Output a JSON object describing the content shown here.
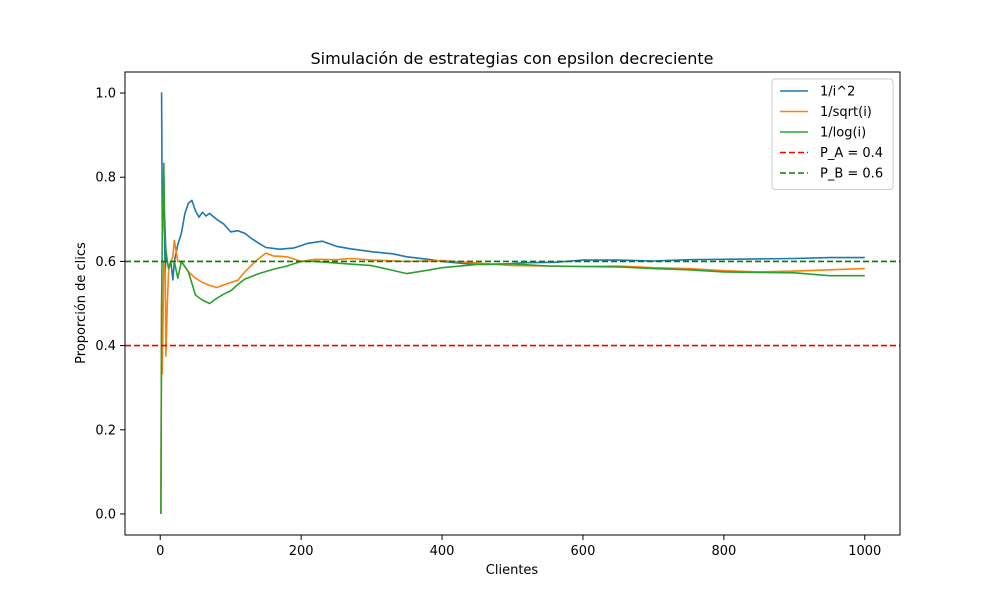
{
  "chart_data": {
    "type": "line",
    "title": "Simulación de estrategias con epsilon decreciente",
    "xlabel": "Clientes",
    "ylabel": "Proporción de clics",
    "xlim": [
      -50,
      1050
    ],
    "ylim": [
      -0.05,
      1.05
    ],
    "xticks": [
      0,
      200,
      400,
      600,
      800,
      1000
    ],
    "yticks": [
      0.0,
      0.2,
      0.4,
      0.6,
      0.8,
      1.0
    ],
    "xtick_labels": [
      "0",
      "200",
      "400",
      "600",
      "800",
      "1000"
    ],
    "ytick_labels": [
      "0.0",
      "0.2",
      "0.4",
      "0.6",
      "0.8",
      "1.0"
    ],
    "grid": false,
    "legend_position": "top-right",
    "series": [
      {
        "name": "1/i^2",
        "color": "#1f77b4",
        "style": "solid",
        "points": [
          [
            1,
            1.0
          ],
          [
            2,
            1.0
          ],
          [
            3,
            0.667
          ],
          [
            4,
            0.75
          ],
          [
            5,
            0.8
          ],
          [
            6,
            0.667
          ],
          [
            7,
            0.571
          ],
          [
            8,
            0.625
          ],
          [
            10,
            0.6
          ],
          [
            12,
            0.583
          ],
          [
            15,
            0.6
          ],
          [
            18,
            0.556
          ],
          [
            20,
            0.6
          ],
          [
            25,
            0.64
          ],
          [
            30,
            0.667
          ],
          [
            35,
            0.714
          ],
          [
            40,
            0.738
          ],
          [
            45,
            0.745
          ],
          [
            50,
            0.72
          ],
          [
            55,
            0.705
          ],
          [
            60,
            0.717
          ],
          [
            65,
            0.708
          ],
          [
            70,
            0.714
          ],
          [
            80,
            0.7
          ],
          [
            90,
            0.689
          ],
          [
            100,
            0.67
          ],
          [
            110,
            0.673
          ],
          [
            120,
            0.667
          ],
          [
            130,
            0.654
          ],
          [
            140,
            0.643
          ],
          [
            150,
            0.633
          ],
          [
            170,
            0.629
          ],
          [
            190,
            0.632
          ],
          [
            210,
            0.643
          ],
          [
            230,
            0.648
          ],
          [
            250,
            0.636
          ],
          [
            270,
            0.63
          ],
          [
            300,
            0.623
          ],
          [
            330,
            0.618
          ],
          [
            350,
            0.611
          ],
          [
            380,
            0.605
          ],
          [
            400,
            0.6
          ],
          [
            430,
            0.595
          ],
          [
            460,
            0.593
          ],
          [
            490,
            0.594
          ],
          [
            520,
            0.597
          ],
          [
            560,
            0.598
          ],
          [
            600,
            0.603
          ],
          [
            650,
            0.603
          ],
          [
            700,
            0.601
          ],
          [
            750,
            0.604
          ],
          [
            800,
            0.605
          ],
          [
            850,
            0.606
          ],
          [
            900,
            0.607
          ],
          [
            950,
            0.609
          ],
          [
            1000,
            0.609
          ]
        ]
      },
      {
        "name": "1/sqrt(i)",
        "color": "#ff7f0e",
        "style": "solid",
        "points": [
          [
            1,
            0.0
          ],
          [
            2,
            0.5
          ],
          [
            3,
            0.333
          ],
          [
            5,
            0.6
          ],
          [
            7,
            0.571
          ],
          [
            8,
            0.375
          ],
          [
            10,
            0.5
          ],
          [
            12,
            0.583
          ],
          [
            15,
            0.6
          ],
          [
            18,
            0.611
          ],
          [
            20,
            0.65
          ],
          [
            25,
            0.6
          ],
          [
            30,
            0.6
          ],
          [
            40,
            0.575
          ],
          [
            50,
            0.56
          ],
          [
            60,
            0.55
          ],
          [
            70,
            0.543
          ],
          [
            80,
            0.538
          ],
          [
            90,
            0.544
          ],
          [
            100,
            0.55
          ],
          [
            110,
            0.555
          ],
          [
            120,
            0.575
          ],
          [
            130,
            0.592
          ],
          [
            140,
            0.607
          ],
          [
            150,
            0.62
          ],
          [
            160,
            0.613
          ],
          [
            180,
            0.611
          ],
          [
            200,
            0.6
          ],
          [
            220,
            0.605
          ],
          [
            250,
            0.604
          ],
          [
            270,
            0.607
          ],
          [
            300,
            0.603
          ],
          [
            350,
            0.6
          ],
          [
            400,
            0.602
          ],
          [
            450,
            0.596
          ],
          [
            500,
            0.59
          ],
          [
            550,
            0.589
          ],
          [
            600,
            0.588
          ],
          [
            650,
            0.589
          ],
          [
            700,
            0.585
          ],
          [
            750,
            0.583
          ],
          [
            800,
            0.578
          ],
          [
            850,
            0.575
          ],
          [
            900,
            0.577
          ],
          [
            950,
            0.58
          ],
          [
            1000,
            0.583
          ]
        ]
      },
      {
        "name": "1/log(i)",
        "color": "#2ca02c",
        "style": "solid",
        "points": [
          [
            1,
            0.0
          ],
          [
            2,
            0.5
          ],
          [
            3,
            0.667
          ],
          [
            4,
            0.75
          ],
          [
            5,
            0.833
          ],
          [
            6,
            0.714
          ],
          [
            8,
            0.625
          ],
          [
            10,
            0.6
          ],
          [
            12,
            0.583
          ],
          [
            15,
            0.6
          ],
          [
            20,
            0.6
          ],
          [
            25,
            0.56
          ],
          [
            30,
            0.6
          ],
          [
            40,
            0.575
          ],
          [
            50,
            0.52
          ],
          [
            60,
            0.508
          ],
          [
            70,
            0.5
          ],
          [
            80,
            0.512
          ],
          [
            90,
            0.522
          ],
          [
            100,
            0.53
          ],
          [
            110,
            0.545
          ],
          [
            120,
            0.558
          ],
          [
            140,
            0.571
          ],
          [
            160,
            0.581
          ],
          [
            180,
            0.589
          ],
          [
            200,
            0.6
          ],
          [
            220,
            0.6
          ],
          [
            250,
            0.596
          ],
          [
            300,
            0.59
          ],
          [
            350,
            0.571
          ],
          [
            380,
            0.579
          ],
          [
            400,
            0.585
          ],
          [
            450,
            0.593
          ],
          [
            500,
            0.594
          ],
          [
            550,
            0.589
          ],
          [
            600,
            0.588
          ],
          [
            650,
            0.587
          ],
          [
            700,
            0.583
          ],
          [
            750,
            0.58
          ],
          [
            800,
            0.575
          ],
          [
            850,
            0.574
          ],
          [
            900,
            0.573
          ],
          [
            950,
            0.566
          ],
          [
            1000,
            0.566
          ]
        ]
      },
      {
        "name": "P_A = 0.4",
        "color": "#ff0000",
        "style": "dashed",
        "hline": 0.4
      },
      {
        "name": "P_B = 0.6",
        "color": "#008000",
        "style": "dashed",
        "hline": 0.6
      }
    ]
  }
}
